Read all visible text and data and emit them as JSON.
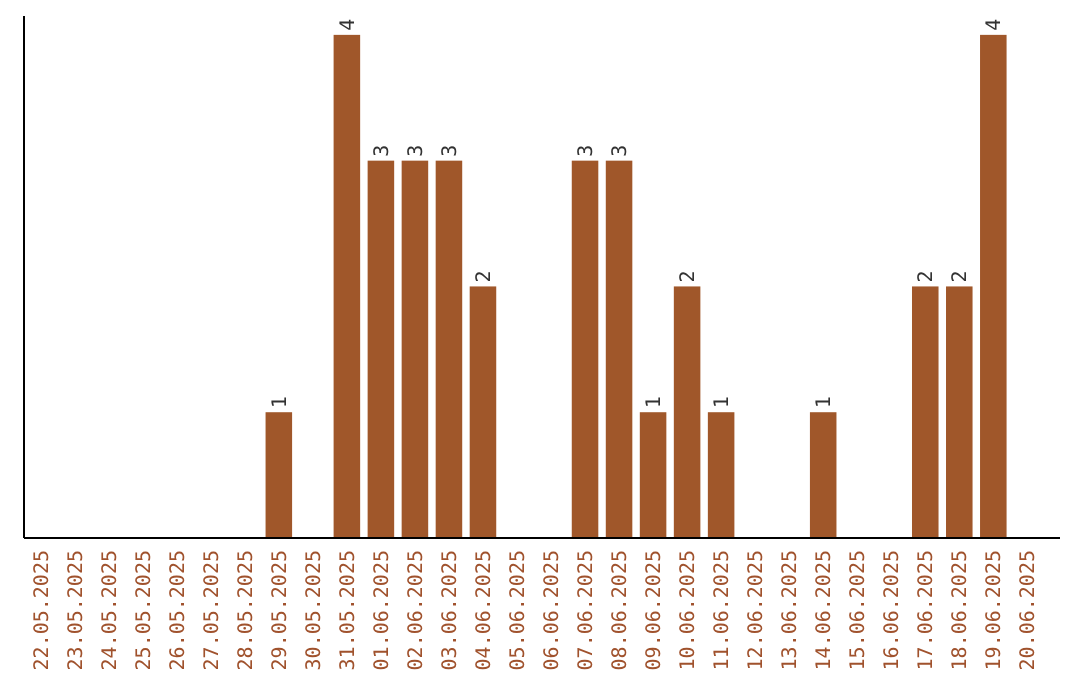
{
  "chart_data": {
    "type": "bar",
    "categories": [
      "22.05.2025",
      "23.05.2025",
      "24.05.2025",
      "25.05.2025",
      "26.05.2025",
      "27.05.2025",
      "28.05.2025",
      "29.05.2025",
      "30.05.2025",
      "31.05.2025",
      "01.06.2025",
      "02.06.2025",
      "03.06.2025",
      "04.06.2025",
      "05.06.2025",
      "06.06.2025",
      "07.06.2025",
      "08.06.2025",
      "09.06.2025",
      "10.06.2025",
      "11.06.2025",
      "12.06.2025",
      "13.06.2025",
      "14.06.2025",
      "15.06.2025",
      "16.06.2025",
      "17.06.2025",
      "18.06.2025",
      "19.06.2025",
      "20.06.2025"
    ],
    "values": [
      0,
      0,
      0,
      0,
      0,
      0,
      0,
      1,
      0,
      4,
      3,
      3,
      3,
      2,
      0,
      0,
      3,
      3,
      1,
      2,
      1,
      0,
      0,
      1,
      0,
      0,
      2,
      2,
      4,
      0
    ],
    "value_labels": [
      null,
      null,
      null,
      null,
      null,
      null,
      null,
      "1",
      null,
      "4",
      "3",
      "3",
      "3",
      "2",
      null,
      null,
      "3",
      "3",
      "1",
      "2",
      "1",
      null,
      null,
      "1",
      null,
      null,
      "2",
      "2",
      "4",
      null
    ],
    "color": "#a0572a",
    "ylim": [
      0,
      4.15
    ],
    "tick_labels": "x"
  }
}
